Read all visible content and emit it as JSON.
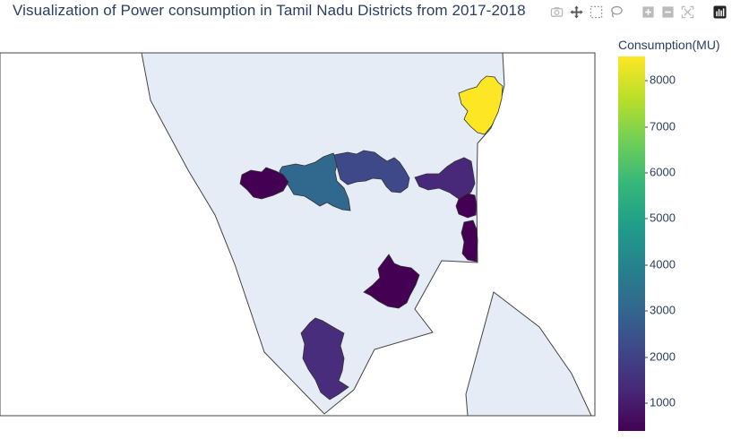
{
  "title": "Visualization of Power consumption in Tamil Nadu Districts from 2017-2018",
  "modebar": {
    "icons": [
      "camera-icon",
      "pan-icon",
      "box-select-icon",
      "lasso-icon",
      "zoom-in-icon",
      "zoom-out-icon",
      "autoscale-icon",
      "plotly-logo-icon"
    ]
  },
  "colorbar": {
    "title": "Consumption(MU)",
    "ticks": [
      "8000",
      "7000",
      "6000",
      "5000",
      "4000",
      "3000",
      "2000",
      "1000"
    ],
    "colorscale": "Viridis"
  },
  "colors": {
    "land": "#e5ecf6",
    "border": "#444444",
    "title": "#2a3f5f"
  },
  "districts_colors": {
    "chennai": "#fde725",
    "coimbatore": "#31688e",
    "salem": "#3e4989",
    "tiruppur_west": "#440154",
    "vellore_east": "#482878",
    "villupuram": "#440154",
    "cuddalore": "#440154",
    "trichy": "#440154",
    "madurai_south": "#472d7b"
  }
}
